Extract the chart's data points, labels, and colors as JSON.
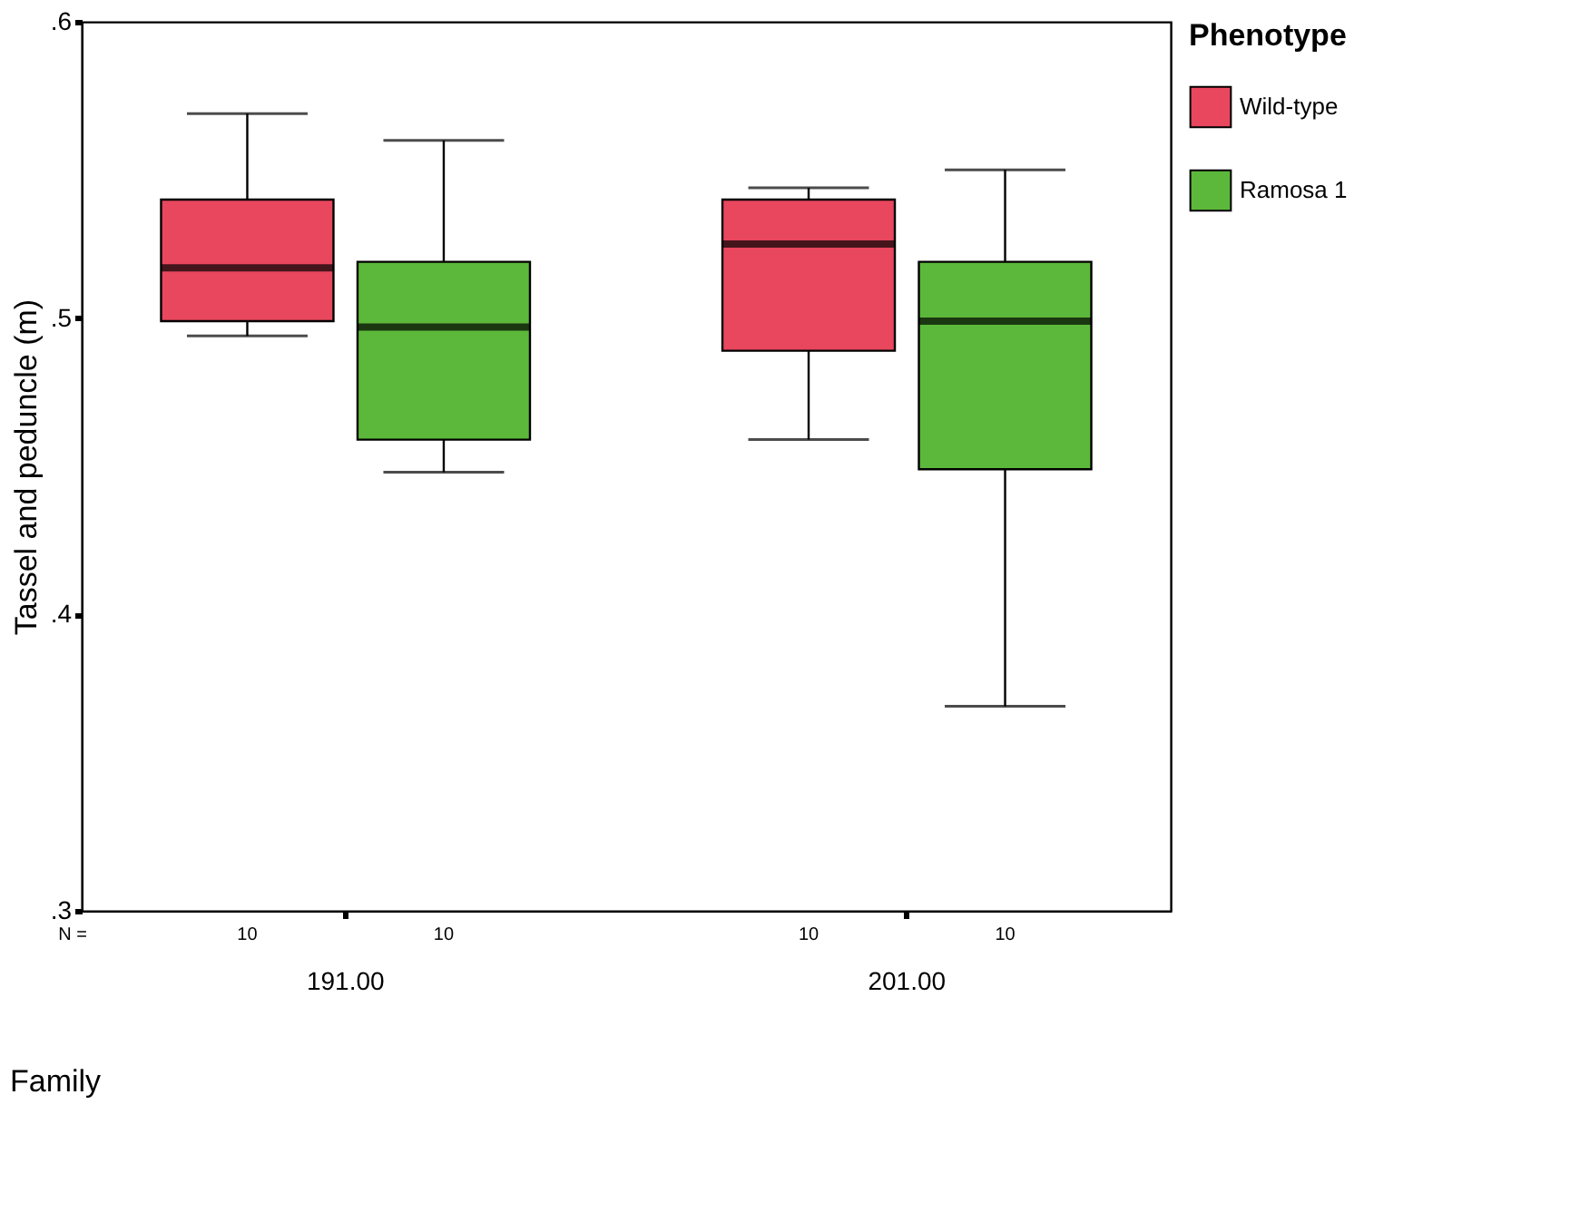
{
  "chart_data": {
    "type": "box",
    "categories": [
      "191.00",
      "201.00"
    ],
    "xlabel": "Family",
    "ylabel": "Tassel and peduncle (m)",
    "legend_title": "Phenotype",
    "legend": "right",
    "grid": false,
    "ylim": [
      0.3,
      0.6
    ],
    "yticks": [
      {
        "value": 0.3,
        "label": ".3"
      },
      {
        "value": 0.4,
        "label": ".4"
      },
      {
        "value": 0.5,
        "label": ".5"
      },
      {
        "value": 0.6,
        "label": ".6"
      }
    ],
    "annotations": [
      "N =",
      "10",
      "10",
      "10",
      "10"
    ],
    "series": [
      {
        "name": "Wild-type",
        "color": "#e8475e",
        "boxes": [
          {
            "low": 0.494,
            "q1": 0.499,
            "median": 0.517,
            "q3": 0.54,
            "high": 0.569
          },
          {
            "low": 0.459,
            "q1": 0.489,
            "median": 0.525,
            "q3": 0.54,
            "high": 0.544
          }
        ]
      },
      {
        "name": "Ramosa 1",
        "color": "#5cb83a",
        "boxes": [
          {
            "low": 0.448,
            "q1": 0.459,
            "median": 0.497,
            "q3": 0.519,
            "high": 0.56
          },
          {
            "low": 0.369,
            "q1": 0.449,
            "median": 0.499,
            "q3": 0.519,
            "high": 0.55
          }
        ]
      }
    ]
  }
}
